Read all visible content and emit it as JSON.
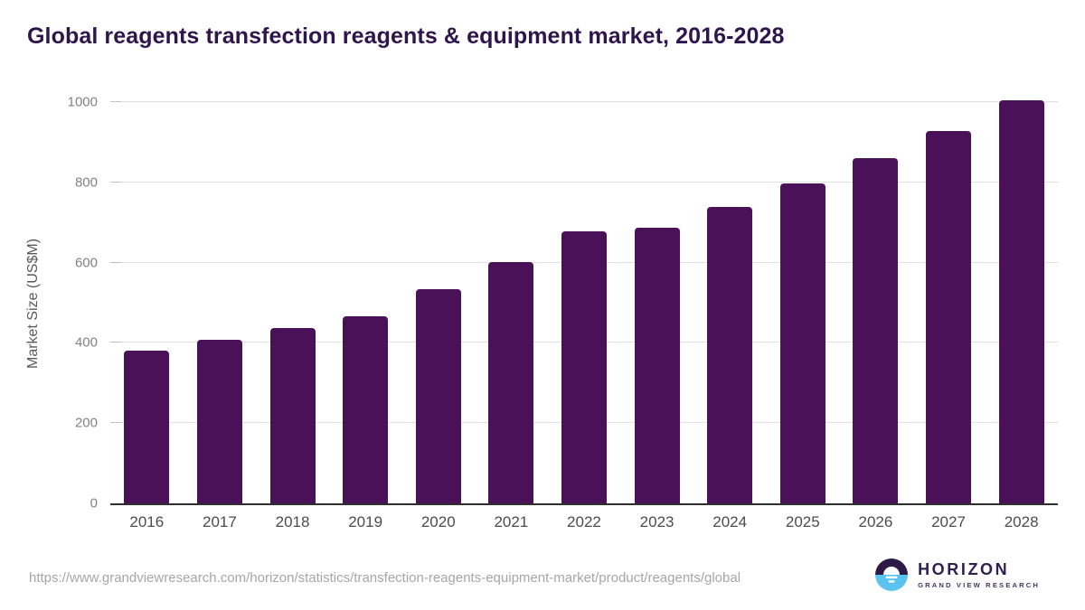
{
  "chart_data": {
    "type": "bar",
    "title": "Global reagents transfection reagents & equipment market, 2016-2028",
    "categories": [
      "2016",
      "2017",
      "2018",
      "2019",
      "2020",
      "2021",
      "2022",
      "2023",
      "2024",
      "2025",
      "2026",
      "2027",
      "2028"
    ],
    "values": [
      380,
      407,
      438,
      466,
      533,
      602,
      678,
      688,
      739,
      797,
      861,
      928,
      1004
    ],
    "xlabel": "",
    "ylabel": "Market Size (US$M)",
    "ylim": [
      0,
      1000
    ],
    "yticks": [
      0,
      200,
      400,
      600,
      800,
      1000
    ],
    "grid": true,
    "legend": false,
    "bar_color": "#4A1058"
  },
  "footer": {
    "source_url": "https://www.grandviewresearch.com/horizon/statistics/transfection-reagents-equipment-market/product/reagents/global",
    "logo": {
      "brand": "HORIZON",
      "sub_brand": "GRAND VIEW RESEARCH"
    }
  },
  "colors": {
    "bar": "#4A1058",
    "title_text": "#2E164C",
    "logo_dark_purple": "#2E1A47",
    "logo_blue": "#5BC3EF"
  }
}
